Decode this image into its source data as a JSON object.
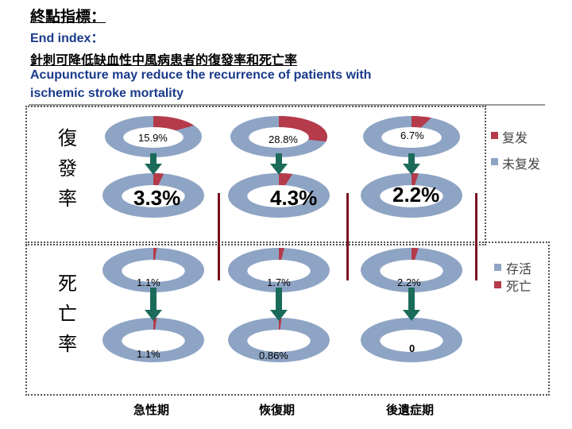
{
  "title": "終點指標：",
  "subtitle_en_1": "End index：",
  "subtitle_zh": "針刺可降低缺血性中風病患者的復發率和死亡率",
  "subtitle_en_2a": "Acupuncture may reduce the recurrence of patients with",
  "subtitle_en_2b": "ischemic stroke mortality",
  "row_labels": {
    "recurrence": [
      "復",
      "發",
      "率"
    ],
    "mortality": [
      "死",
      "亡",
      "率"
    ]
  },
  "phases": [
    "急性期",
    "恢復期",
    "後遺症期"
  ],
  "legend_recurrence": [
    {
      "label": "复发",
      "color": "#b53a4a"
    },
    {
      "label": "未复发",
      "color": "#8ea4c4"
    }
  ],
  "legend_mortality": [
    {
      "label": "存活",
      "color": "#8ea4c4"
    },
    {
      "label": "死亡",
      "color": "#b53a4a"
    }
  ],
  "colors": {
    "event": "#b53a4a",
    "no_event": "#8ea4c4",
    "arrow": "#1b6b5a",
    "bar": "#7a1020"
  },
  "chart_data": {
    "type": "pie",
    "groups": [
      {
        "row": "復發率",
        "stage": "before",
        "series": [
          {
            "phase": "急性期",
            "label": "15.9%",
            "value": 15.9
          },
          {
            "phase": "恢復期",
            "label": "28.8%",
            "value": 28.8
          },
          {
            "phase": "後遺症期",
            "label": "6.7%",
            "value": 6.7
          }
        ]
      },
      {
        "row": "復發率",
        "stage": "after",
        "series": [
          {
            "phase": "急性期",
            "label": "3.3%",
            "value": 3.3
          },
          {
            "phase": "恢復期",
            "label": "4.3%",
            "value": 4.3
          },
          {
            "phase": "後遺症期",
            "label": "2.2%",
            "value": 2.2
          }
        ]
      },
      {
        "row": "死亡率",
        "stage": "before",
        "series": [
          {
            "phase": "急性期",
            "label": "1.1%",
            "value": 1.1
          },
          {
            "phase": "恢復期",
            "label": "1.7%",
            "value": 1.7
          },
          {
            "phase": "後遺症期",
            "label": "2.2%",
            "value": 2.2
          }
        ]
      },
      {
        "row": "死亡率",
        "stage": "after",
        "series": [
          {
            "phase": "急性期",
            "label": "1.1%",
            "value": 1.1
          },
          {
            "phase": "恢復期",
            "label": "0.86%",
            "value": 0.86
          },
          {
            "phase": "後遺症期",
            "label": "0",
            "value": 0
          }
        ]
      }
    ]
  }
}
